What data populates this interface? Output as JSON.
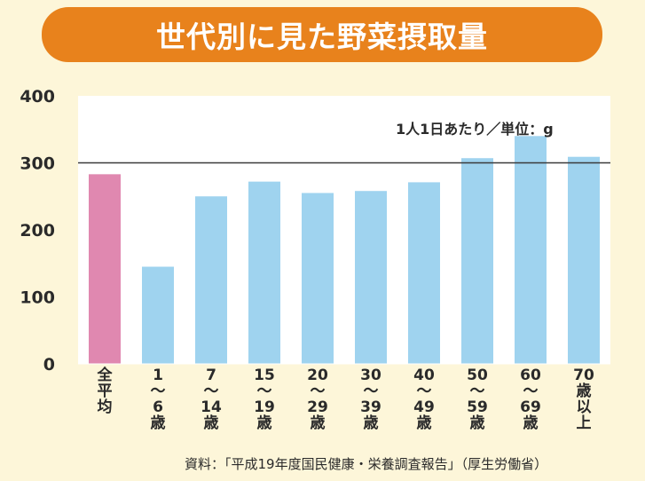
{
  "chart_data": {
    "type": "bar",
    "title": "世代別に見た野菜摂取量",
    "unit_note": "1人1日あたり／単位：g",
    "source": "資料：「平成19年度国民健康・栄養調査報告」（厚生労働省）",
    "categories": [
      [
        "全",
        "平",
        "均"
      ],
      [
        "1",
        "〜",
        "6",
        "歳"
      ],
      [
        "7",
        "〜",
        "14",
        "歳"
      ],
      [
        "15",
        "〜",
        "19",
        "歳"
      ],
      [
        "20",
        "〜",
        "29",
        "歳"
      ],
      [
        "30",
        "〜",
        "39",
        "歳"
      ],
      [
        "40",
        "〜",
        "49",
        "歳"
      ],
      [
        "50",
        "〜",
        "59",
        "歳"
      ],
      [
        "60",
        "〜",
        "69",
        "歳"
      ],
      [
        "70",
        "歳",
        "以",
        "上"
      ]
    ],
    "values": [
      283,
      145,
      250,
      272,
      255,
      258,
      271,
      307,
      340,
      309
    ],
    "highlight_index": 0,
    "highlight_color": "#e088b0",
    "bar_color": "#9fd3ef",
    "reference_line": 300,
    "ylim": [
      0,
      400
    ],
    "yticks": [
      "0",
      "100",
      "200",
      "300",
      "400"
    ],
    "grid": false,
    "xlabel": "",
    "ylabel": ""
  }
}
